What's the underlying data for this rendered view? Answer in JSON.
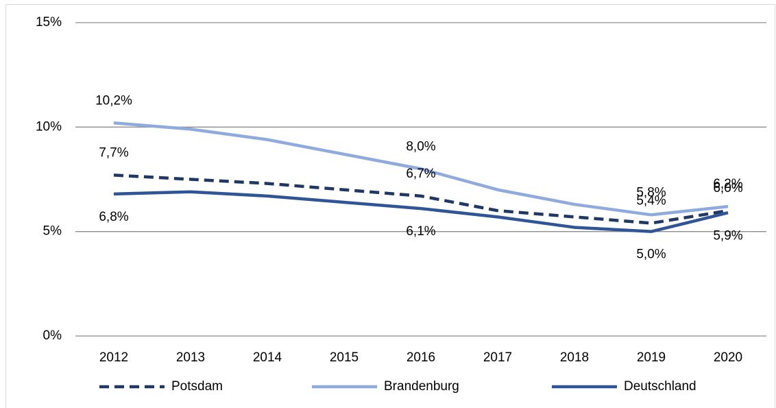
{
  "chart_data": {
    "type": "line",
    "categories": [
      "2012",
      "2013",
      "2014",
      "2015",
      "2016",
      "2017",
      "2018",
      "2019",
      "2020"
    ],
    "series": [
      {
        "name": "Potsdam",
        "color": "#203864",
        "line_style": "dashed",
        "values": [
          7.7,
          7.5,
          7.3,
          7.0,
          6.7,
          6.0,
          5.7,
          5.4,
          6.0
        ],
        "value_labels": [
          "7,7%",
          null,
          null,
          null,
          "6,7%",
          null,
          null,
          "5,4%",
          "6,0%"
        ]
      },
      {
        "name": "Brandenburg",
        "color": "#8faadc",
        "line_style": "solid",
        "values": [
          10.2,
          9.9,
          9.4,
          8.7,
          8.0,
          7.0,
          6.3,
          5.8,
          6.2
        ],
        "value_labels": [
          "10,2%",
          null,
          null,
          null,
          "8,0%",
          null,
          null,
          "5,8%",
          "6,2%"
        ]
      },
      {
        "name": "Deutschland",
        "color": "#2f5597",
        "line_style": "solid",
        "values": [
          6.8,
          6.9,
          6.7,
          6.4,
          6.1,
          5.7,
          5.2,
          5.0,
          5.9
        ],
        "value_labels": [
          "6,8%",
          null,
          null,
          null,
          "6,1%",
          null,
          null,
          "5,0%",
          "5,9%"
        ]
      }
    ],
    "ylim": [
      0,
      15
    ],
    "yticks": [
      {
        "value": 0,
        "label": "0%"
      },
      {
        "value": 5,
        "label": "5%"
      },
      {
        "value": 10,
        "label": "10%"
      },
      {
        "value": 15,
        "label": "15%"
      }
    ],
    "grid": true,
    "legend": "bottom"
  }
}
